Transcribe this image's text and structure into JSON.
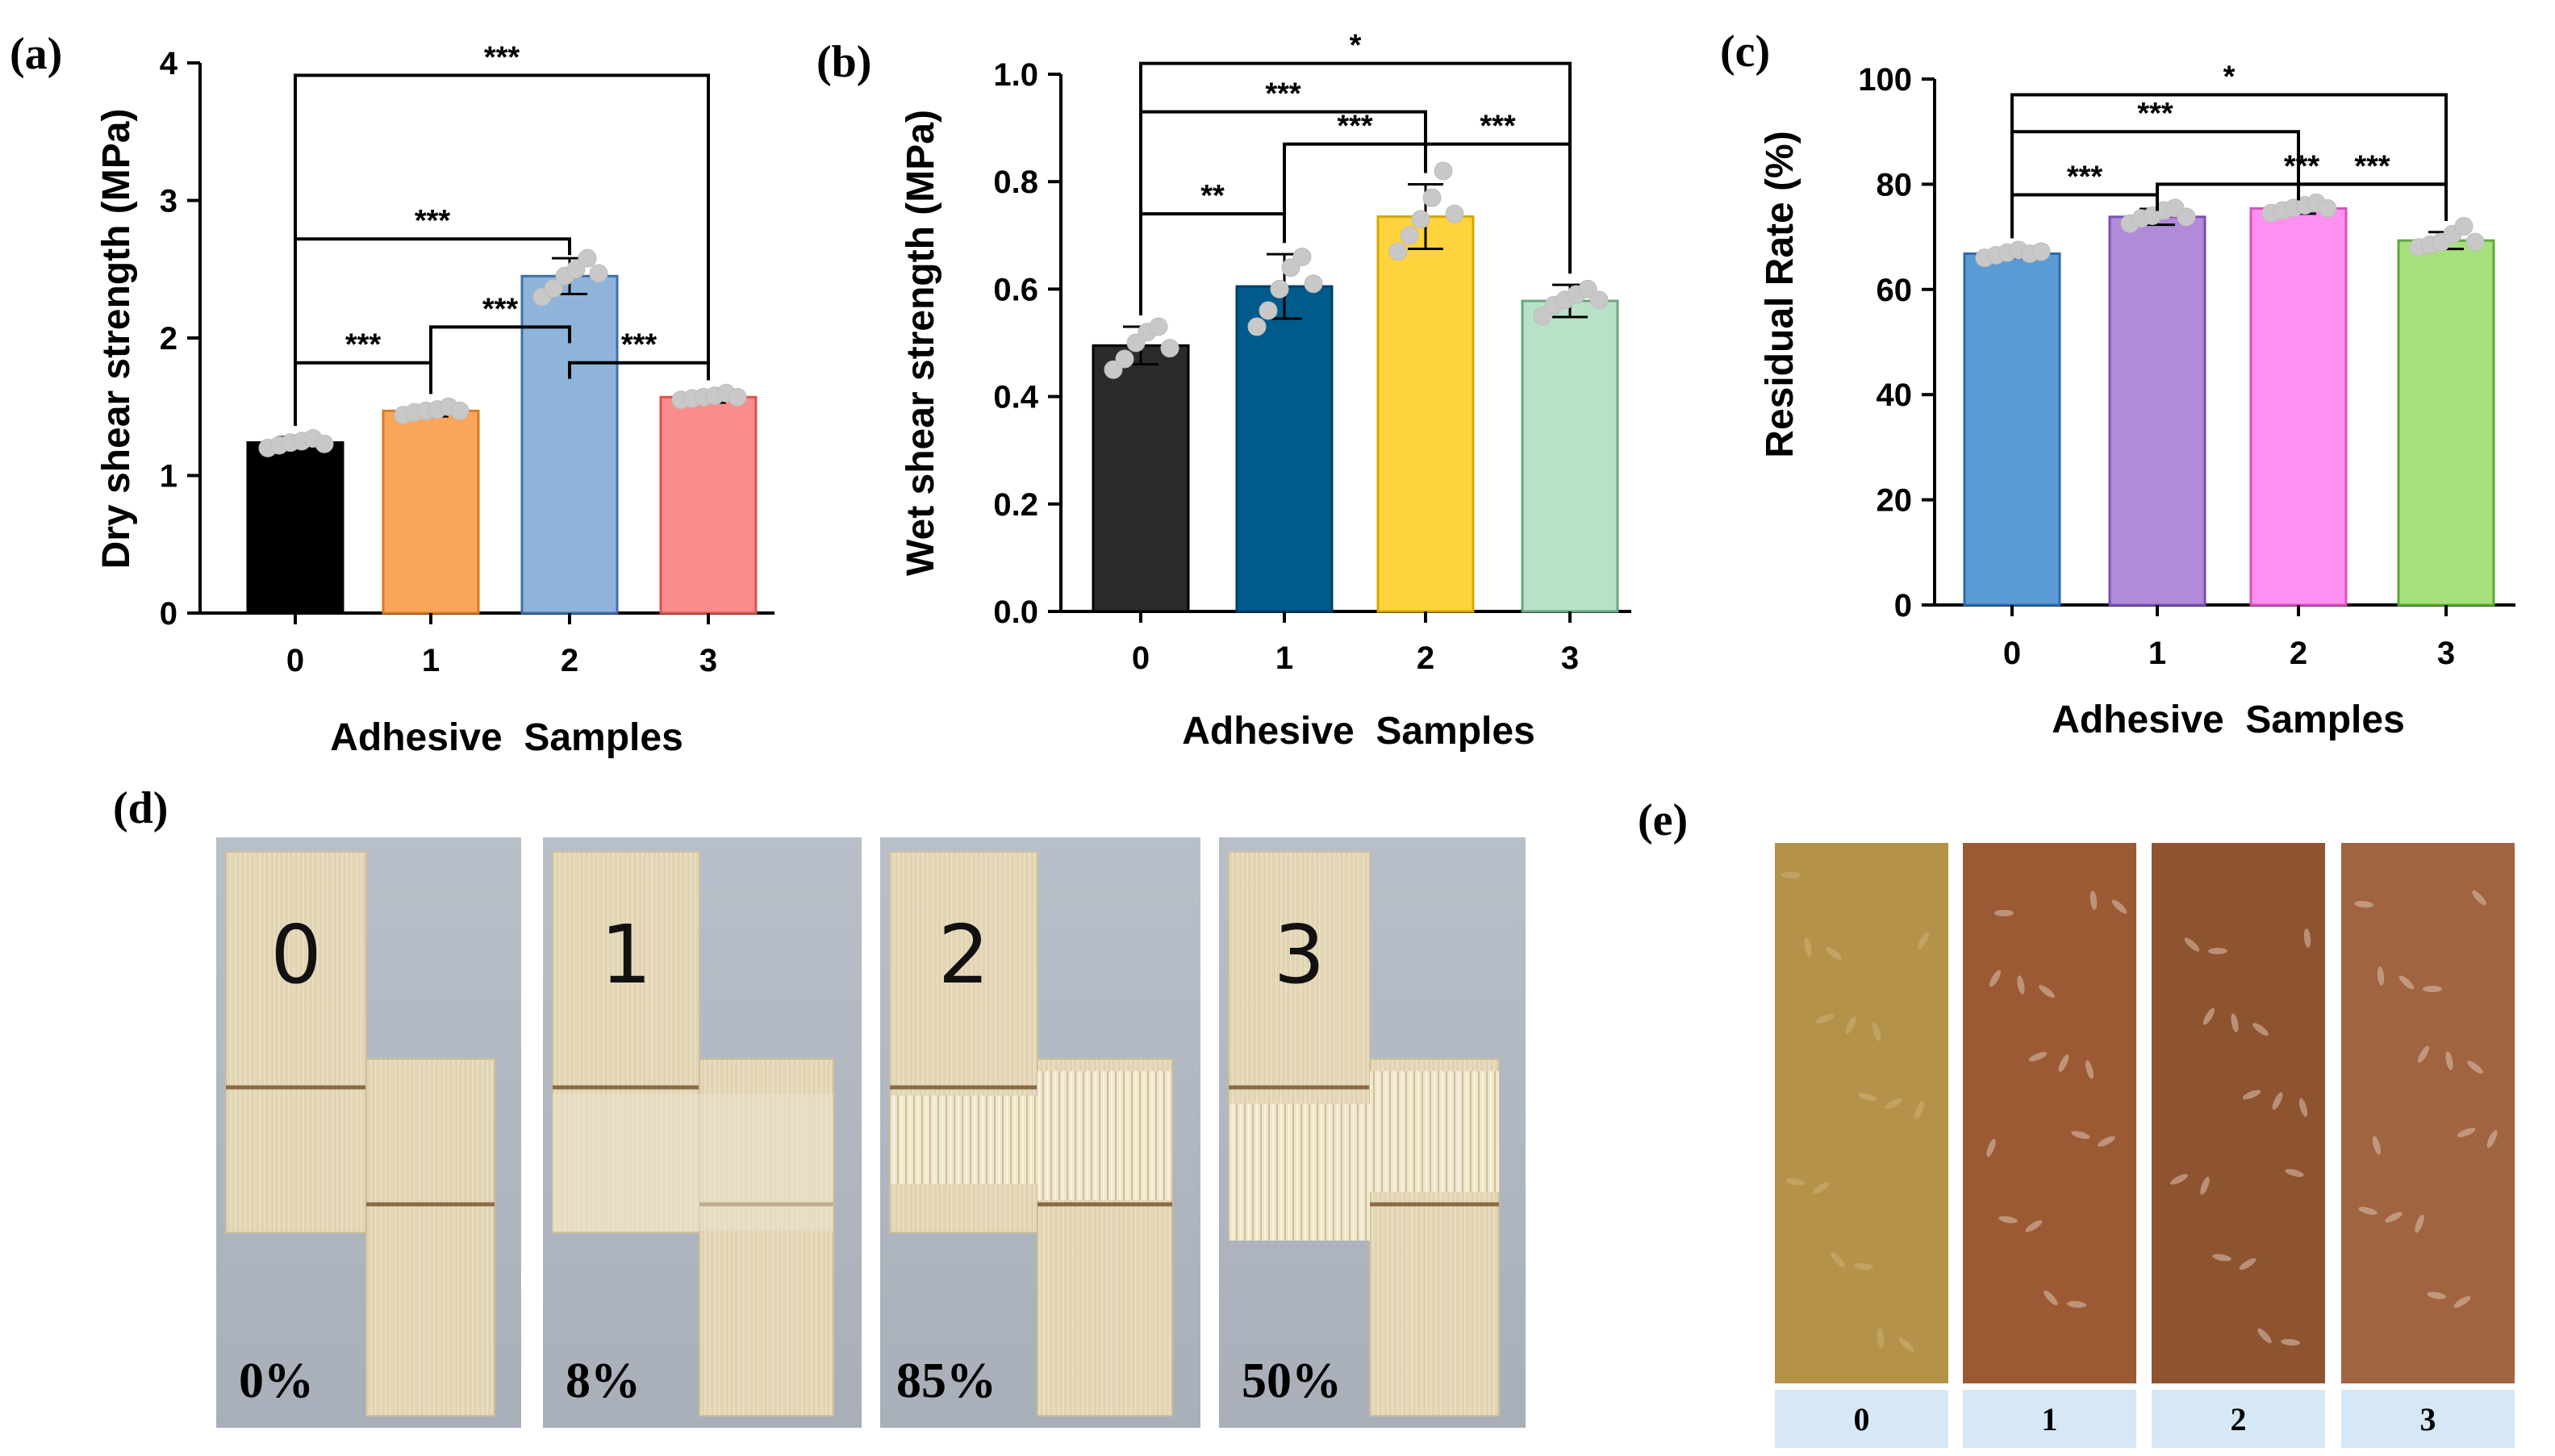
{
  "chart_data": [
    {
      "type": "bar",
      "panel": "(a)",
      "title": "",
      "xlabel": "Adhesive  Samples",
      "ylabel": "Dry shear strength (MPa)",
      "categories": [
        "0",
        "1",
        "2",
        "3"
      ],
      "values": [
        1.24,
        1.47,
        2.45,
        1.57
      ],
      "errors": [
        0.04,
        0.04,
        0.13,
        0.04
      ],
      "points": [
        [
          1.2,
          1.22,
          1.24,
          1.25,
          1.27,
          1.23
        ],
        [
          1.44,
          1.46,
          1.47,
          1.48,
          1.5,
          1.47
        ],
        [
          2.3,
          2.36,
          2.45,
          2.5,
          2.58,
          2.47
        ],
        [
          1.55,
          1.56,
          1.57,
          1.58,
          1.6,
          1.57
        ]
      ],
      "colors": [
        "#000000",
        "#f9a65a",
        "#8fb4d9",
        "#f98c8c"
      ],
      "edge_colors": [
        "#000000",
        "#d97a20",
        "#3f6fa8",
        "#d9534f"
      ],
      "ylim": [
        0,
        4
      ],
      "yticks": [
        "0",
        "1",
        "2",
        "3",
        "4"
      ],
      "significance": [
        {
          "from": 0,
          "to": 1,
          "label": "***"
        },
        {
          "from": 1,
          "to": 2,
          "label": "***"
        },
        {
          "from": 2,
          "to": 3,
          "label": "***"
        },
        {
          "from": 0,
          "to": 2,
          "label": "***"
        },
        {
          "from": 0,
          "to": 3,
          "label": "***"
        }
      ]
    },
    {
      "type": "bar",
      "panel": "(b)",
      "title": "",
      "xlabel": "Adhesive  Samples",
      "ylabel": "Wet shear strength (MPa)",
      "categories": [
        "0",
        "1",
        "2",
        "3"
      ],
      "values": [
        0.495,
        0.605,
        0.735,
        0.578
      ],
      "errors": [
        0.035,
        0.06,
        0.06,
        0.03
      ],
      "points": [
        [
          0.45,
          0.47,
          0.5,
          0.52,
          0.53,
          0.49
        ],
        [
          0.53,
          0.56,
          0.6,
          0.64,
          0.66,
          0.61
        ],
        [
          0.67,
          0.7,
          0.73,
          0.77,
          0.82,
          0.74
        ],
        [
          0.55,
          0.57,
          0.58,
          0.59,
          0.6,
          0.58
        ]
      ],
      "colors": [
        "#2b2b2b",
        "#005a8c",
        "#ffd33d",
        "#b8e2c8"
      ],
      "edge_colors": [
        "#000000",
        "#003f66",
        "#d4a800",
        "#6aa581"
      ],
      "ylim": [
        0,
        1
      ],
      "yticks": [
        "0.0",
        "0.2",
        "0.4",
        "0.6",
        "0.8",
        "1.0"
      ],
      "significance": [
        {
          "from": 0,
          "to": 1,
          "label": "**"
        },
        {
          "from": 1,
          "to": 2,
          "label": "***"
        },
        {
          "from": 2,
          "to": 3,
          "label": "***"
        },
        {
          "from": 0,
          "to": 2,
          "label": "***"
        },
        {
          "from": 0,
          "to": 3,
          "label": "*"
        }
      ]
    },
    {
      "type": "bar",
      "panel": "(c)",
      "title": "",
      "xlabel": "Adhesive  Samples",
      "ylabel": "Residual Rate (%)",
      "categories": [
        "0",
        "1",
        "2",
        "3"
      ],
      "values": [
        66.8,
        73.8,
        75.4,
        69.3
      ],
      "errors": [
        0.8,
        1.5,
        1.0,
        1.6
      ],
      "points": [
        [
          66.0,
          66.5,
          67.0,
          67.5,
          66.8,
          67.2
        ],
        [
          72.5,
          73.5,
          74.0,
          75.0,
          75.5,
          73.8
        ],
        [
          74.5,
          75.0,
          75.5,
          76.0,
          76.5,
          75.4
        ],
        [
          68.0,
          68.5,
          69.0,
          70.5,
          72.0,
          69.0
        ]
      ],
      "colors": [
        "#5b9bd5",
        "#b18ad9",
        "#ff8ff0",
        "#a6e07a"
      ],
      "edge_colors": [
        "#2e6ba8",
        "#7b4fb0",
        "#d94fc0",
        "#5fa83a"
      ],
      "ylim": [
        0,
        100
      ],
      "yticks": [
        "0",
        "20",
        "40",
        "60",
        "80",
        "100"
      ],
      "significance": [
        {
          "from": 0,
          "to": 1,
          "label": "***"
        },
        {
          "from": 2,
          "to": 3,
          "label": "***"
        },
        {
          "from": 1,
          "to": 3,
          "label": "***"
        },
        {
          "from": 0,
          "to": 2,
          "label": "***"
        },
        {
          "from": 0,
          "to": 3,
          "label": "*"
        }
      ]
    }
  ],
  "photos_d": {
    "panel": "(d)",
    "samples": [
      {
        "number": "0",
        "percent": "0%"
      },
      {
        "number": "1",
        "percent": "8%"
      },
      {
        "number": "2",
        "percent": "85%"
      },
      {
        "number": "3",
        "percent": "50%"
      }
    ]
  },
  "photos_e": {
    "panel": "(e)",
    "strips": [
      {
        "label": "0",
        "color": "#b5924a"
      },
      {
        "label": "1",
        "color": "#9c5a34"
      },
      {
        "label": "2",
        "color": "#8e532f"
      },
      {
        "label": "3",
        "color": "#a06440"
      }
    ]
  }
}
